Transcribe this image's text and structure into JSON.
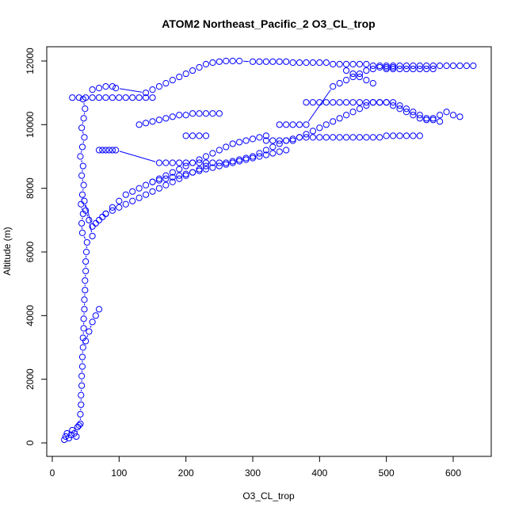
{
  "chart_data": {
    "type": "scatter",
    "title": "ATOM2 Northeast_Pacific_2 O3_CL_trop",
    "xlabel": "O3_CL_trop",
    "ylabel": "Altitude (m)",
    "xlim": [
      0,
      650
    ],
    "ylim": [
      -300,
      12500
    ],
    "x_ticks": [
      0,
      100,
      200,
      300,
      400,
      500,
      600
    ],
    "y_ticks": [
      0,
      2000,
      4000,
      6000,
      8000,
      10000,
      12000
    ],
    "grid": false,
    "legend": "none",
    "color": "#0000ff",
    "marker": "open-circle",
    "series": [
      {
        "x": [
          18,
          20,
          22,
          25,
          28,
          30,
          33,
          36,
          38,
          40,
          42,
          42,
          43,
          43,
          44,
          44,
          45,
          45,
          46,
          46,
          47,
          47,
          48,
          48,
          49,
          49,
          50,
          50,
          51,
          52,
          45,
          44,
          46,
          43,
          45,
          47,
          44,
          46,
          42,
          45,
          48,
          44,
          47,
          49,
          46,
          50,
          55,
          60,
          65,
          70,
          60,
          55,
          50,
          48,
          60,
          65,
          70,
          75,
          80,
          90,
          100,
          110,
          120,
          130,
          140,
          150,
          160,
          170,
          180,
          190,
          200,
          210,
          220,
          230,
          80,
          90,
          100,
          110,
          120,
          130,
          140,
          150,
          160,
          170,
          180,
          190,
          200,
          210,
          220,
          230,
          240,
          250,
          260,
          270,
          280,
          290,
          300,
          310,
          320,
          150,
          160,
          170,
          180,
          190,
          200,
          210,
          220,
          230,
          240,
          250,
          260,
          270,
          280,
          290,
          300,
          310,
          320,
          330,
          340,
          350,
          70,
          75,
          80,
          85,
          90,
          95,
          160,
          170,
          180,
          190,
          200,
          210,
          220,
          230,
          240,
          250,
          260,
          270,
          280,
          290,
          300,
          310,
          320,
          330,
          340,
          350,
          360,
          370,
          380,
          390,
          400,
          410,
          420,
          430,
          440,
          450,
          460,
          470,
          480,
          490,
          500,
          510,
          520,
          530,
          540,
          550,
          200,
          210,
          220,
          230,
          320,
          330,
          340,
          350,
          360,
          370,
          380,
          390,
          400,
          410,
          420,
          430,
          440,
          450,
          460,
          470,
          480,
          490,
          500,
          510,
          520,
          530,
          540,
          550,
          560,
          570,
          580,
          130,
          140,
          150,
          160,
          170,
          180,
          190,
          200,
          210,
          220,
          230,
          240,
          250,
          380,
          390,
          400,
          410,
          420,
          430,
          440,
          450,
          460,
          470,
          480,
          490,
          500,
          510,
          520,
          530,
          540,
          550,
          560,
          570,
          580,
          590,
          600,
          610,
          340,
          350,
          360,
          370,
          380,
          420,
          430,
          440,
          450,
          460,
          470,
          480,
          490,
          500,
          510,
          30,
          40,
          50,
          60,
          70,
          80,
          90,
          100,
          110,
          120,
          130,
          140,
          150,
          60,
          70,
          80,
          90,
          95,
          140,
          150,
          160,
          170,
          180,
          190,
          200,
          210,
          220,
          230,
          240,
          250,
          260,
          270,
          280,
          300,
          310,
          320,
          330,
          340,
          350,
          360,
          370,
          380,
          390,
          400,
          410,
          420,
          430,
          440,
          450,
          460,
          470,
          480,
          490,
          500,
          510,
          520,
          530,
          540,
          550,
          560,
          570,
          580,
          590,
          600,
          610,
          620,
          630,
          500,
          510,
          520,
          530,
          540,
          550,
          560,
          570,
          440,
          450,
          460,
          470,
          480
        ],
        "y": [
          100,
          200,
          300,
          150,
          250,
          400,
          300,
          200,
          500,
          550,
          600,
          900,
          1200,
          1500,
          1800,
          2100,
          2400,
          2700,
          3000,
          3300,
          3600,
          3900,
          4200,
          4500,
          4800,
          5100,
          5400,
          5700,
          6000,
          6300,
          6600,
          6900,
          7200,
          7500,
          7800,
          8100,
          8400,
          8700,
          9000,
          9300,
          9600,
          9900,
          10200,
          10500,
          10800,
          3200,
          3500,
          3800,
          4000,
          4200,
          6500,
          7000,
          7300,
          7600,
          6800,
          6900,
          7000,
          7100,
          7200,
          7300,
          7400,
          7500,
          7600,
          7700,
          7800,
          7900,
          8000,
          8100,
          8200,
          8300,
          8400,
          8500,
          8600,
          8700,
          7200,
          7400,
          7600,
          7800,
          7900,
          8000,
          8100,
          8200,
          8300,
          8400,
          8500,
          8600,
          8700,
          8800,
          8900,
          9000,
          9100,
          9200,
          9300,
          9400,
          9450,
          9500,
          9550,
          9600,
          9650,
          8200,
          8250,
          8300,
          8350,
          8400,
          8450,
          8500,
          8550,
          8600,
          8650,
          8700,
          8750,
          8800,
          8850,
          8900,
          8950,
          9000,
          9050,
          9100,
          9150,
          9200,
          9200,
          9200,
          9200,
          9200,
          9200,
          9200,
          8800,
          8800,
          8800,
          8800,
          8800,
          8800,
          8800,
          8800,
          8800,
          8800,
          8800,
          8850,
          8900,
          8950,
          9000,
          9100,
          9200,
          9300,
          9400,
          9500,
          9550,
          9600,
          9600,
          9600,
          9600,
          9600,
          9600,
          9600,
          9600,
          9600,
          9600,
          9600,
          9600,
          9600,
          9650,
          9650,
          9650,
          9650,
          9650,
          9650,
          9650,
          9650,
          9650,
          9650,
          9500,
          9500,
          9500,
          9500,
          9500,
          9600,
          9700,
          9800,
          9900,
          10000,
          10100,
          10200,
          10300,
          10400,
          10500,
          10600,
          10700,
          10700,
          10700,
          10700,
          10600,
          10500,
          10400,
          10300,
          10200,
          10150,
          10100,
          10000,
          10050,
          10100,
          10150,
          10200,
          10250,
          10300,
          10300,
          10350,
          10350,
          10350,
          10350,
          10350,
          10700,
          10700,
          10700,
          10700,
          10700,
          10700,
          10700,
          10700,
          10700,
          10700,
          10700,
          10700,
          10700,
          10600,
          10500,
          10400,
          10300,
          10200,
          10150,
          10200,
          10300,
          10400,
          10300,
          10250,
          10000,
          10000,
          10000,
          10000,
          10000,
          11200,
          11300,
          11400,
          11500,
          11600,
          11700,
          11750,
          11800,
          11800,
          11800,
          10850,
          10850,
          10850,
          10850,
          10850,
          10850,
          10850,
          10850,
          10850,
          10850,
          10850,
          10850,
          10850,
          11100,
          11150,
          11200,
          11200,
          11150,
          11000,
          11100,
          11200,
          11300,
          11400,
          11500,
          11600,
          11700,
          11800,
          11900,
          11950,
          11980,
          12000,
          12000,
          12000,
          11980,
          11980,
          11980,
          11980,
          11980,
          11980,
          11950,
          11950,
          11950,
          11950,
          11950,
          11950,
          11900,
          11900,
          11900,
          11900,
          11900,
          11900,
          11850,
          11850,
          11850,
          11850,
          11850,
          11850,
          11850,
          11850,
          11850,
          11850,
          11850,
          11850,
          11850,
          11850,
          11850,
          11850,
          11750,
          11750,
          11750,
          11750,
          11750,
          11750,
          11750,
          11750,
          11700,
          11600,
          11500,
          11400,
          11300
        ]
      }
    ]
  }
}
